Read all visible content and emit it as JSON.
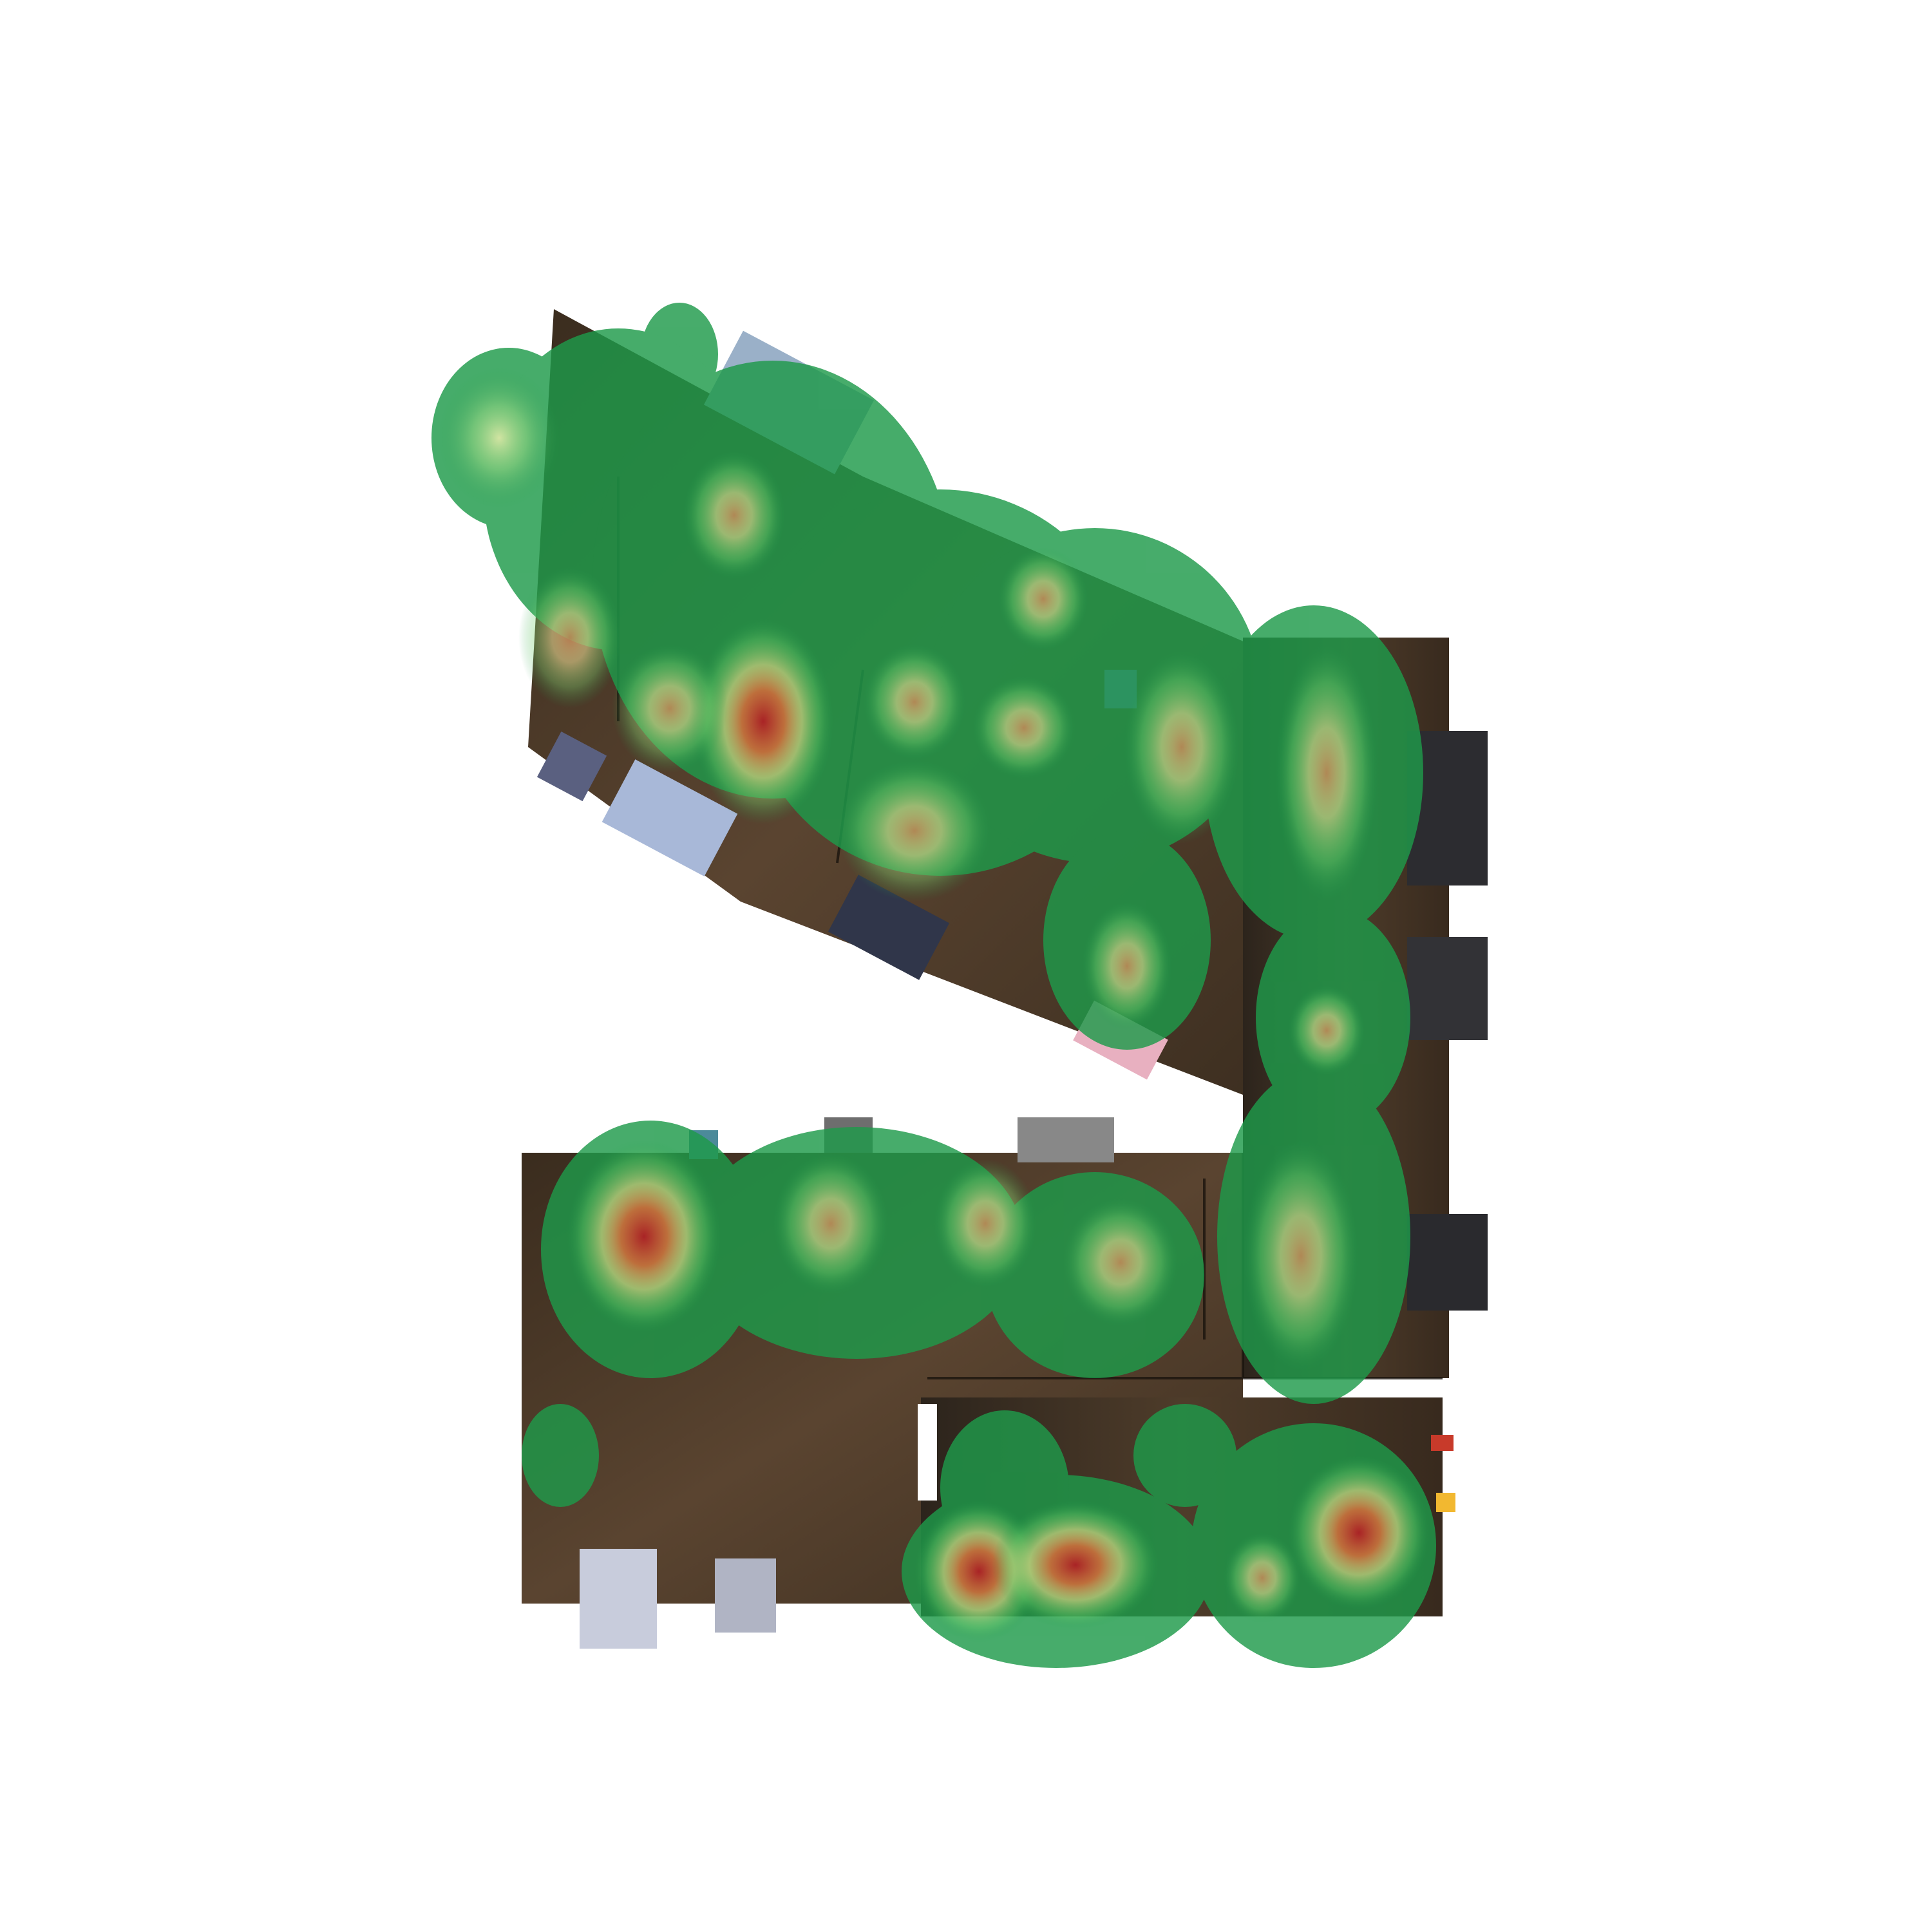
{
  "map": {
    "kind": "gallery-floor-plan-heatmap",
    "legend_visible": false,
    "visible_text": []
  },
  "colors": {
    "background": "#ffffff",
    "floor_dark": "#2a2016",
    "floor_mid": "#4a3826",
    "floor_light": "#5c4630",
    "heat_low": "#1e9a4a",
    "heat_mid_low": "#6fcf6a",
    "heat_mid": "#f0e68c",
    "heat_high": "#d4643a",
    "heat_peak": "#b8222a"
  },
  "rooms": [
    {
      "id": "upper-gallery-wing",
      "shape": "diagonal-wing"
    },
    {
      "id": "east-corridor",
      "shape": "vertical-corridor"
    },
    {
      "id": "lower-west-room",
      "shape": "rectangular-room"
    },
    {
      "id": "lower-south-room",
      "shape": "rectangular-room"
    }
  ],
  "artworks": [
    {
      "id": "art-blue-panel-top",
      "tone": "#9ab0c8"
    },
    {
      "id": "art-dots-small",
      "tone": "#5a6080"
    },
    {
      "id": "art-blue-panel-left",
      "tone": "#a8b8d8"
    },
    {
      "id": "art-dots-grid",
      "tone": "#30364a"
    },
    {
      "id": "art-pink-green",
      "tone": "#e8b0c0"
    },
    {
      "id": "art-dark-smoke-1",
      "tone": "#2c2c30"
    },
    {
      "id": "art-dark-smoke-2",
      "tone": "#323236"
    },
    {
      "id": "art-dark-smoke-3",
      "tone": "#2a2a2e"
    },
    {
      "id": "art-grey-texture-top",
      "tone": "#888888"
    },
    {
      "id": "art-grey-texture-top-2",
      "tone": "#6e6e6e"
    },
    {
      "id": "art-palm",
      "tone": "#4c8a9a"
    },
    {
      "id": "art-portal-white",
      "tone": "#c8ccdc"
    },
    {
      "id": "art-grey-blue-small",
      "tone": "#b0b4c4"
    },
    {
      "id": "art-red-stripe",
      "tone": "#c83a2a"
    },
    {
      "id": "art-orange-yellow",
      "tone": "#f2b830"
    },
    {
      "id": "art-purple-small",
      "tone": "#7078c8"
    }
  ],
  "heat_spots": [
    {
      "id": "hotspot-upper-center",
      "intensity": 0.95
    },
    {
      "id": "hotspot-upper-left",
      "intensity": 0.7
    },
    {
      "id": "hotspot-upper-mid",
      "intensity": 0.65
    },
    {
      "id": "hotspot-upper-right",
      "intensity": 0.7
    },
    {
      "id": "hotspot-corridor-top",
      "intensity": 0.7
    },
    {
      "id": "hotspot-lower-west",
      "intensity": 0.95
    },
    {
      "id": "hotspot-lower-mid",
      "intensity": 0.7
    },
    {
      "id": "hotspot-lower-east",
      "intensity": 0.65
    },
    {
      "id": "hotspot-south-left",
      "intensity": 0.95
    },
    {
      "id": "hotspot-south-mid",
      "intensity": 0.9
    },
    {
      "id": "hotspot-south-right",
      "intensity": 0.9
    }
  ]
}
